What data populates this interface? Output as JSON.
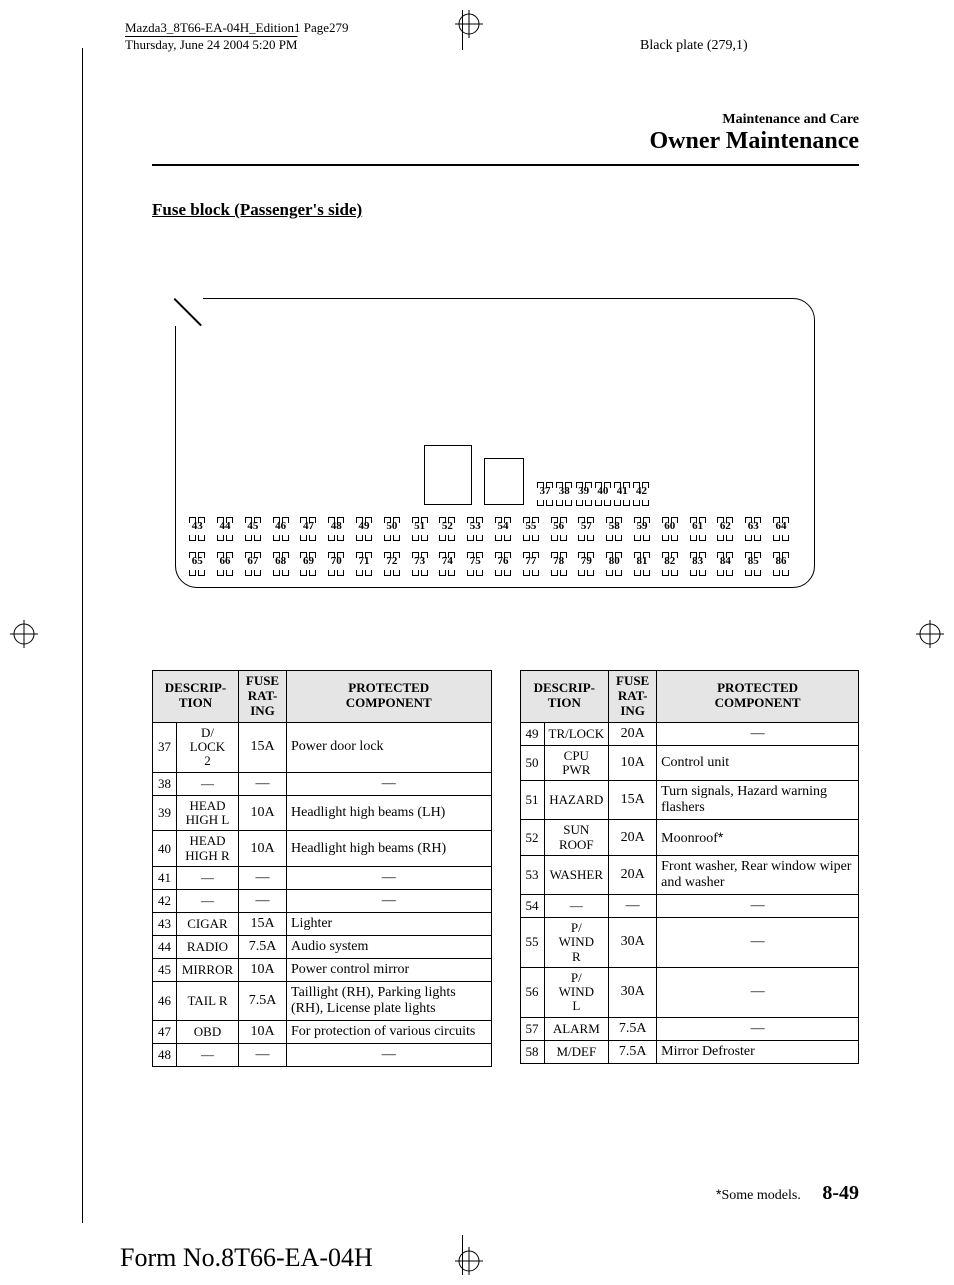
{
  "header": {
    "line1": "Mazda3_8T66-EA-04H_Edition1 Page279",
    "line2": "Thursday, June 24 2004 5:20 PM",
    "black_plate": "Black plate (279,1)"
  },
  "section": {
    "small": "Maintenance and Care",
    "big": "Owner Maintenance",
    "subtitle": "Fuse block (Passenger's side)"
  },
  "fuse_rows": {
    "row0": [
      "37",
      "38",
      "39",
      "40",
      "41",
      "42"
    ],
    "row1": [
      "43",
      "44",
      "45",
      "46",
      "47",
      "48",
      "49",
      "50",
      "51",
      "52",
      "53",
      "54",
      "55",
      "56",
      "57",
      "58",
      "59",
      "60",
      "61",
      "62",
      "63",
      "64"
    ],
    "row2": [
      "65",
      "66",
      "67",
      "68",
      "69",
      "70",
      "71",
      "72",
      "73",
      "74",
      "75",
      "76",
      "77",
      "78",
      "79",
      "80",
      "81",
      "82",
      "83",
      "84",
      "85",
      "86"
    ]
  },
  "table_headers": {
    "desc": "DESCRIP-\nTION",
    "rating": "FUSE\nRAT-\nING",
    "component": "PROTECTED\nCOMPONENT"
  },
  "table_left": [
    {
      "n": "37",
      "d": "D/\nLOCK\n2",
      "r": "15A",
      "c": "Power door lock"
    },
    {
      "n": "38",
      "d": "—",
      "r": "—",
      "c": "—",
      "dash": true
    },
    {
      "n": "39",
      "d": "HEAD\nHIGH L",
      "r": "10A",
      "c": "Headlight high beams (LH)"
    },
    {
      "n": "40",
      "d": "HEAD\nHIGH R",
      "r": "10A",
      "c": "Headlight high beams (RH)"
    },
    {
      "n": "41",
      "d": "—",
      "r": "—",
      "c": "—",
      "dash": true
    },
    {
      "n": "42",
      "d": "—",
      "r": "—",
      "c": "—",
      "dash": true
    },
    {
      "n": "43",
      "d": "CIGAR",
      "r": "15A",
      "c": "Lighter"
    },
    {
      "n": "44",
      "d": "RADIO",
      "r": "7.5A",
      "c": "Audio system"
    },
    {
      "n": "45",
      "d": "MIRROR",
      "r": "10A",
      "c": "Power control mirror"
    },
    {
      "n": "46",
      "d": "TAIL R",
      "r": "7.5A",
      "c": "Taillight (RH), Parking lights (RH), License plate lights"
    },
    {
      "n": "47",
      "d": "OBD",
      "r": "10A",
      "c": "For protection of various circuits"
    },
    {
      "n": "48",
      "d": "—",
      "r": "—",
      "c": "—",
      "dash": true
    }
  ],
  "table_right": [
    {
      "n": "49",
      "d": "TR/LOCK",
      "r": "20A",
      "c": "—",
      "cdash": true
    },
    {
      "n": "50",
      "d": "CPU\nPWR",
      "r": "10A",
      "c": "Control unit"
    },
    {
      "n": "51",
      "d": "HAZARD",
      "r": "15A",
      "c": "Turn signals, Hazard warning flashers"
    },
    {
      "n": "52",
      "d": "SUN\nROOF",
      "r": "20A",
      "c": "Moonroof",
      "star": true
    },
    {
      "n": "53",
      "d": "WASHER",
      "r": "20A",
      "c": "Front washer, Rear window wiper and washer"
    },
    {
      "n": "54",
      "d": "—",
      "r": "—",
      "c": "—",
      "dash": true
    },
    {
      "n": "55",
      "d": "P/\nWIND\nR",
      "r": "30A",
      "c": "—",
      "cdash": true
    },
    {
      "n": "56",
      "d": "P/\nWIND\nL",
      "r": "30A",
      "c": "—",
      "cdash": true
    },
    {
      "n": "57",
      "d": "ALARM",
      "r": "7.5A",
      "c": "—",
      "cdash": true
    },
    {
      "n": "58",
      "d": "M/DEF",
      "r": "7.5A",
      "c": "Mirror Defroster"
    }
  ],
  "footer": {
    "note": "Some models.",
    "page": "8-49",
    "form": "Form No.8T66-EA-04H"
  }
}
